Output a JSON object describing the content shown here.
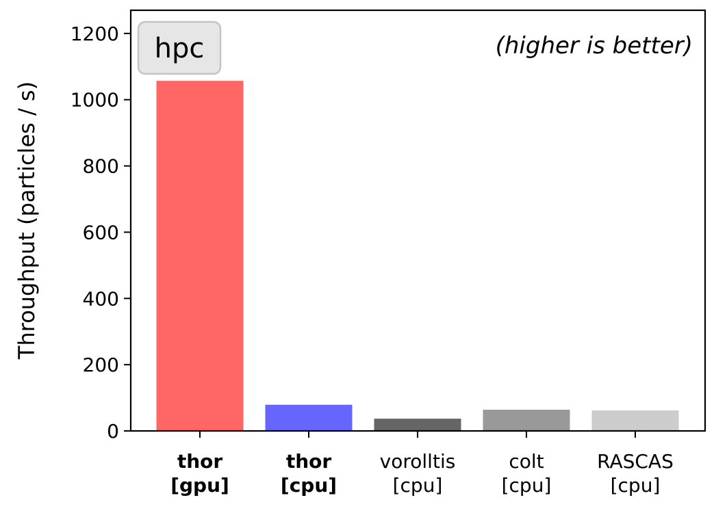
{
  "chart_data": {
    "type": "bar",
    "categories": [
      {
        "line1": "thor",
        "line2": "[gpu]",
        "bold": true
      },
      {
        "line1": "thor",
        "line2": "[cpu]",
        "bold": true
      },
      {
        "line1": "vorolltis",
        "line2": "[cpu]",
        "bold": false
      },
      {
        "line1": "colt",
        "line2": "[cpu]",
        "bold": false
      },
      {
        "line1": "RASCAS",
        "line2": "[cpu]",
        "bold": false
      }
    ],
    "values": [
      1057,
      79,
      37,
      64,
      62
    ],
    "colors": [
      "#ff6666",
      "#6666ff",
      "#666666",
      "#999999",
      "#cccccc"
    ],
    "ylabel": "Throughput (particles / s)",
    "xlabel": "",
    "ylim": [
      0,
      1270
    ],
    "yticks": [
      0,
      200,
      400,
      600,
      800,
      1000,
      1200
    ],
    "grid": false,
    "label_box": "hpc",
    "annotation": "(higher is better)"
  }
}
